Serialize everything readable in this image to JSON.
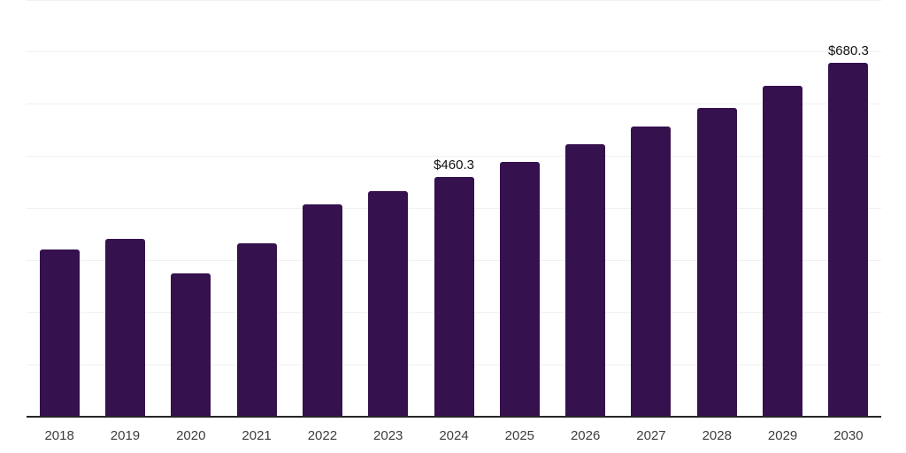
{
  "chart_data": {
    "type": "bar",
    "title": "",
    "xlabel": "",
    "ylabel": "",
    "categories": [
      "2018",
      "2019",
      "2020",
      "2021",
      "2022",
      "2023",
      "2024",
      "2025",
      "2026",
      "2027",
      "2028",
      "2029",
      "2030"
    ],
    "values": [
      322,
      342,
      276,
      334,
      409,
      434,
      460.3,
      490,
      523,
      557,
      594,
      635,
      680.3
    ],
    "data_labels": {
      "2024": "$460.3",
      "2030": "$680.3"
    },
    "ylim": [
      0,
      800
    ],
    "gridline_interval": 100,
    "grid": "horizontal",
    "legend": "none",
    "colors": {
      "bar": "#35114E",
      "gridline": "#f0f0f1",
      "axis_line": "#262626",
      "tick_label": "#3c3c3c",
      "value_label": "#111111",
      "background": "#ffffff"
    }
  }
}
